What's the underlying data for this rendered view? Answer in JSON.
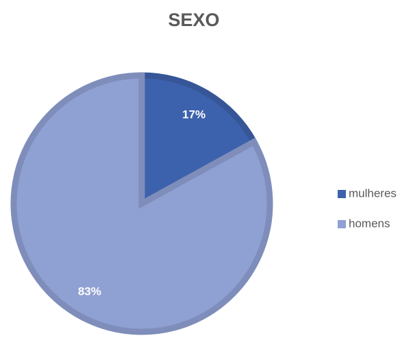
{
  "chart_data": {
    "type": "pie",
    "title": "SEXO",
    "categories": [
      "mulheres",
      "homens"
    ],
    "values": [
      17,
      83
    ],
    "value_labels": [
      "17%",
      "83%"
    ],
    "colors": [
      "#3d62ad",
      "#8fa0d3"
    ],
    "legend": "right"
  }
}
